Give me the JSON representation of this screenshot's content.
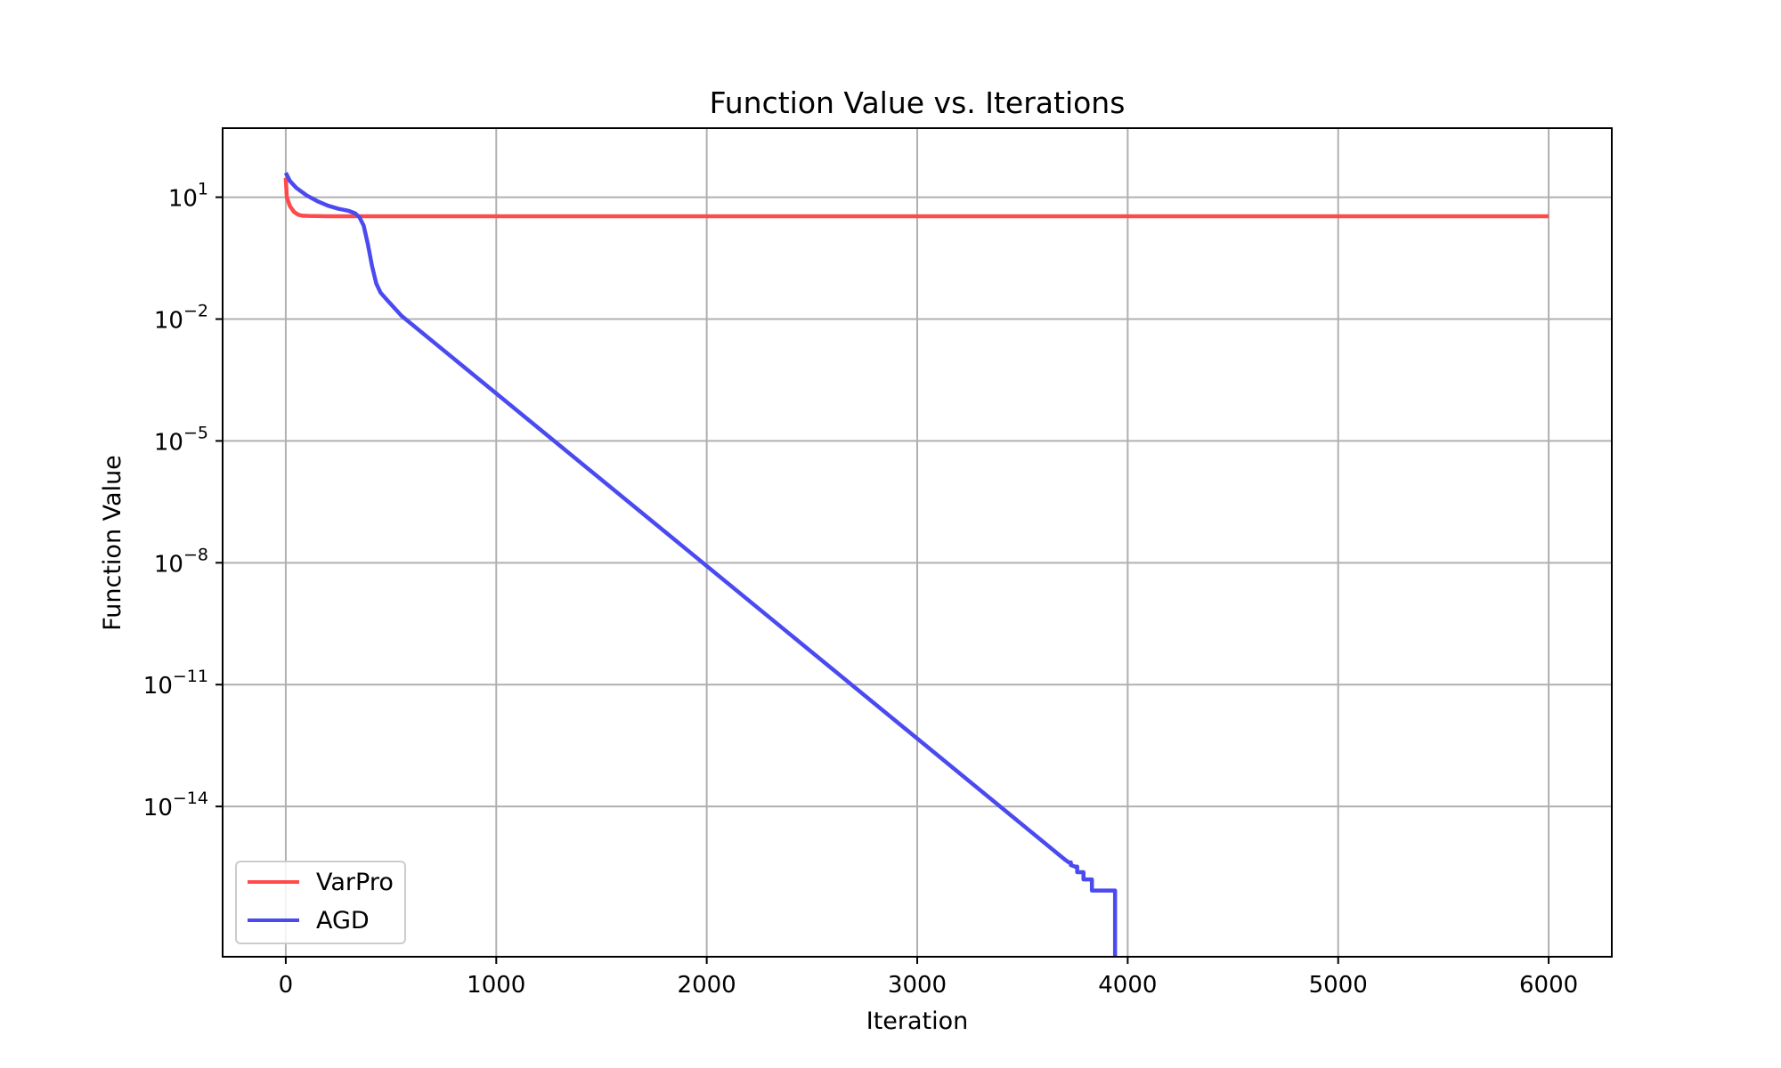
{
  "chart_data": {
    "type": "line",
    "title": "Function Value vs. Iterations",
    "xlabel": "Iteration",
    "ylabel": "Function Value",
    "xlim": [
      -300,
      6300
    ],
    "ylim_log10": [
      -17.7,
      2.7
    ],
    "y_scale": "log",
    "grid": true,
    "legend_placement": "lower-left",
    "x_ticks": [
      {
        "value": 0,
        "label": "0"
      },
      {
        "value": 1000,
        "label": "1000"
      },
      {
        "value": 2000,
        "label": "2000"
      },
      {
        "value": 3000,
        "label": "3000"
      },
      {
        "value": 4000,
        "label": "4000"
      },
      {
        "value": 5000,
        "label": "5000"
      },
      {
        "value": 6000,
        "label": "6000"
      }
    ],
    "y_ticks": [
      {
        "value": 10,
        "base": "10",
        "exp": "1"
      },
      {
        "value": 0.01,
        "base": "10",
        "exp": "−2"
      },
      {
        "value": 1e-05,
        "base": "10",
        "exp": "−5"
      },
      {
        "value": 1e-08,
        "base": "10",
        "exp": "−8"
      },
      {
        "value": 1e-11,
        "base": "10",
        "exp": "−11"
      },
      {
        "value": 1e-14,
        "base": "10",
        "exp": "−14"
      }
    ],
    "series": [
      {
        "name": "VarPro",
        "color": "#ff4a4a",
        "points": [
          [
            0,
            30
          ],
          [
            5,
            10
          ],
          [
            20,
            6
          ],
          [
            40,
            4.3
          ],
          [
            60,
            3.7
          ],
          [
            80,
            3.5
          ],
          [
            110,
            3.45
          ],
          [
            200,
            3.4
          ],
          [
            6000,
            3.4
          ]
        ]
      },
      {
        "name": "AGD",
        "color": "#4a4af0",
        "points": [
          [
            0,
            40
          ],
          [
            20,
            25
          ],
          [
            50,
            17
          ],
          [
            100,
            11
          ],
          [
            150,
            8
          ],
          [
            200,
            6.2
          ],
          [
            250,
            5.2
          ],
          [
            300,
            4.6
          ],
          [
            330,
            4.0
          ],
          [
            350,
            3.2
          ],
          [
            370,
            2.0
          ],
          [
            390,
            0.7
          ],
          [
            410,
            0.2
          ],
          [
            430,
            0.075
          ],
          [
            450,
            0.045
          ],
          [
            480,
            0.03
          ],
          [
            550,
            0.012
          ],
          [
            3700,
            5e-16
          ],
          [
            3720,
            4.2e-16
          ],
          [
            3730,
            4.2e-16
          ],
          [
            3730,
            3.6e-16
          ],
          [
            3750,
            3.3e-16
          ],
          [
            3760,
            3.3e-16
          ],
          [
            3760,
            2.4e-16
          ],
          [
            3790,
            2.4e-16
          ],
          [
            3790,
            1.6e-16
          ],
          [
            3830,
            1.6e-16
          ],
          [
            3830,
            8.5e-17
          ],
          [
            3940,
            8.5e-17
          ],
          [
            3940,
            2e-18
          ]
        ]
      }
    ]
  }
}
